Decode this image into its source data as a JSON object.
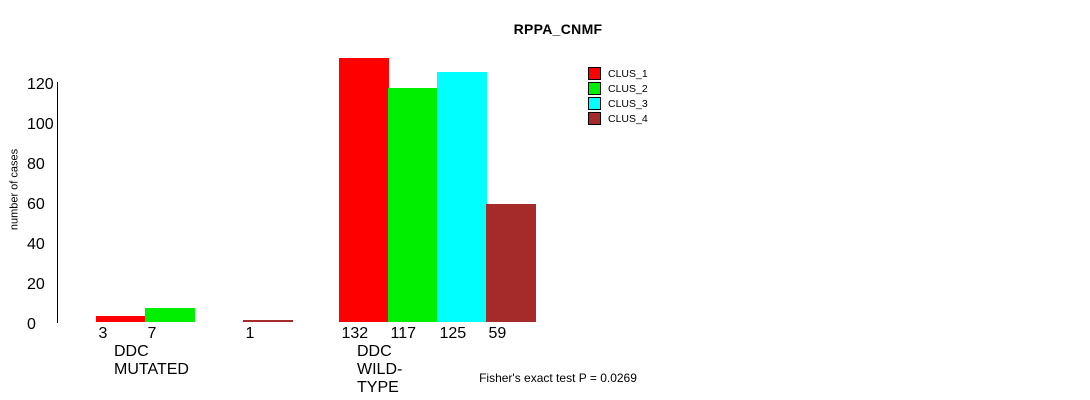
{
  "title": "RPPA_CNMF",
  "y_axis": {
    "label": "number of cases",
    "ticks": [
      0,
      20,
      40,
      60,
      80,
      100,
      120
    ]
  },
  "annotation": "Fisher's exact test P = 0.0269",
  "chart_data": {
    "type": "bar",
    "title": "RPPA_CNMF",
    "xlabel": "",
    "ylabel": "number of cases",
    "ylim": [
      0,
      132
    ],
    "yticks": [
      0,
      20,
      40,
      60,
      80,
      100,
      120
    ],
    "grid": false,
    "legend_position": "top-right",
    "categories": [
      "DDC MUTATED",
      "DDC WILD-TYPE"
    ],
    "series": [
      {
        "name": "CLUS_1",
        "color": "#FF0000",
        "values": [
          3,
          132
        ]
      },
      {
        "name": "CLUS_2",
        "color": "#00EE00",
        "values": [
          7,
          117
        ]
      },
      {
        "name": "CLUS_3",
        "color": "#00FFFF",
        "values": [
          0,
          125
        ]
      },
      {
        "name": "CLUS_4",
        "color": "#A52A2A",
        "values": [
          1,
          59
        ]
      }
    ],
    "bar_value_labels": {
      "DDC MUTATED": [
        "3",
        "7",
        "",
        "1"
      ],
      "DDC WILD-TYPE": [
        "132",
        "117",
        "125",
        "59"
      ]
    },
    "footnote": "Fisher's exact test P = 0.0269"
  }
}
